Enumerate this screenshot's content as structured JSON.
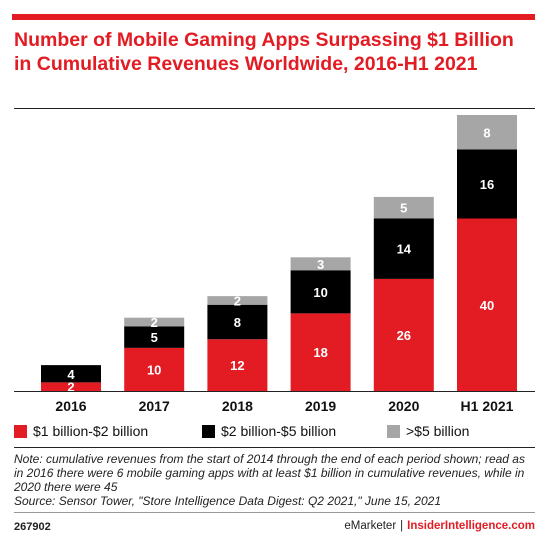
{
  "title": "Number of Mobile Gaming Apps Surpassing $1 Billion in Cumulative Revenues Worldwide, 2016-H1 2021",
  "colors": {
    "accent": "#e31b23",
    "series1": "#e31b23",
    "series2": "#000000",
    "series3": "#a6a6a6"
  },
  "chart_data": {
    "type": "bar",
    "stacked": true,
    "title": "Number of Mobile Gaming Apps Surpassing $1 Billion in Cumulative Revenues Worldwide, 2016-H1 2021",
    "categories": [
      "2016",
      "2017",
      "2018",
      "2019",
      "2020",
      "H1 2021"
    ],
    "series": [
      {
        "name": "$1 billion-$2 billion",
        "color": "#e31b23",
        "values": [
          2,
          10,
          12,
          18,
          26,
          40
        ]
      },
      {
        "name": "$2 billion-$5 billion",
        "color": "#000000",
        "values": [
          4,
          5,
          8,
          10,
          14,
          16
        ]
      },
      {
        "name": ">$5 billion",
        "color": "#a6a6a6",
        "values": [
          0,
          2,
          2,
          3,
          5,
          8
        ]
      }
    ],
    "ylim": [
      0,
      64
    ],
    "grid": false,
    "legend_position": "bottom"
  },
  "note": "Note: cumulative revenues from the start of 2014 through the end of each period shown; read as in 2016 there were 6 mobile gaming apps with at least $1 billion in cumulative revenues, while in 2020 there were 45",
  "source": "Source: Sensor Tower, \"Store Intelligence Data Digest: Q2 2021,\" June 15, 2021",
  "footer": {
    "id": "267902",
    "brand": "eMarketer",
    "separator": "|",
    "site": "InsiderIntelligence.com"
  }
}
